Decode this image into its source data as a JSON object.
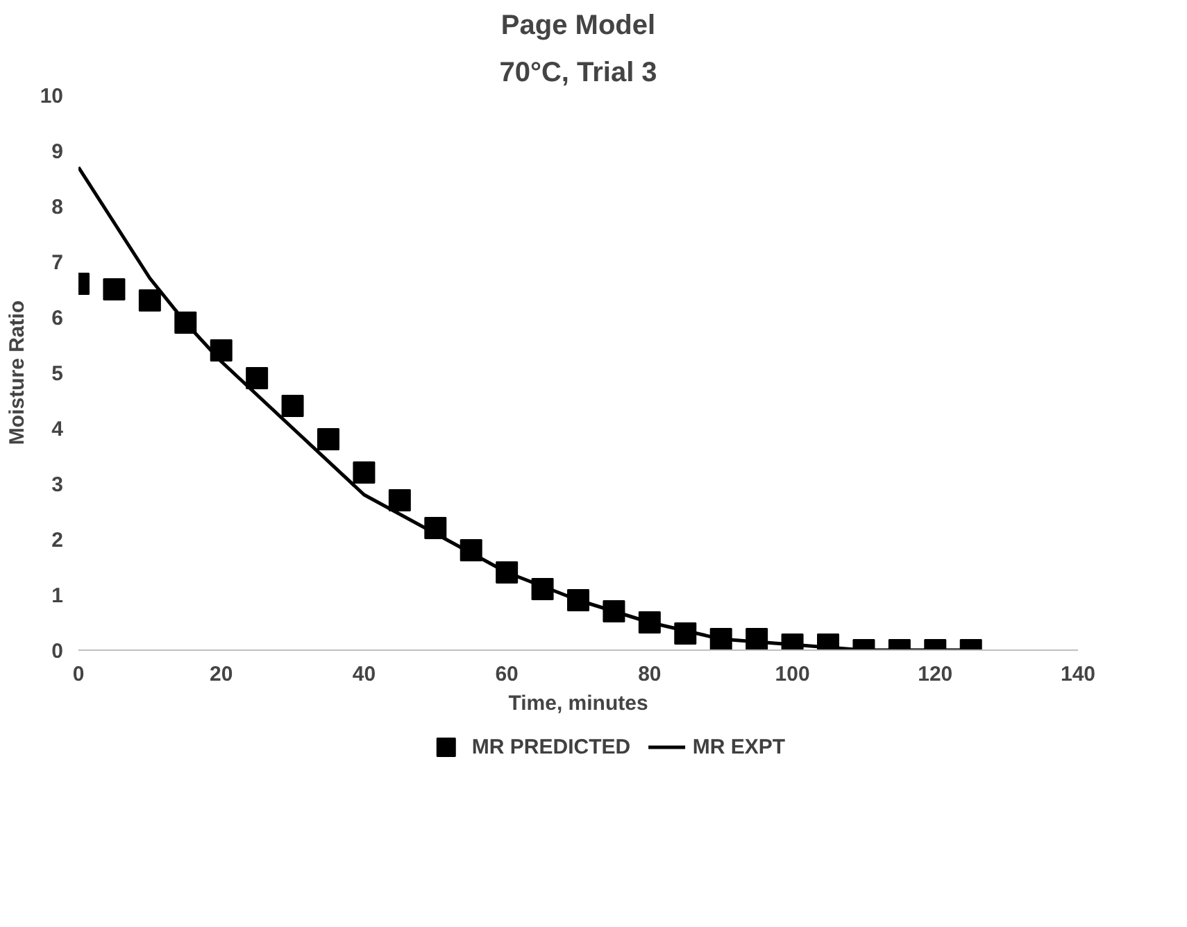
{
  "chart_data": {
    "type": "scatter",
    "title": "Page Model",
    "subtitle": "70°C, Trial 3",
    "xlabel": "Time, minutes",
    "ylabel": "Moisture Ratio",
    "xlim": [
      0,
      140
    ],
    "xticks": [
      0,
      20,
      40,
      60,
      80,
      100,
      120,
      140
    ],
    "ylim": [
      0,
      10
    ],
    "yticks": [
      0,
      1,
      2,
      3,
      4,
      5,
      6,
      7,
      8,
      9,
      10
    ],
    "grid": false,
    "legend": "bottom",
    "series": [
      {
        "name": "MR PREDICTED",
        "marker": "square",
        "color": "#000000",
        "x": [
          0,
          5,
          10,
          15,
          20,
          25,
          30,
          35,
          40,
          45,
          50,
          55,
          60,
          65,
          70,
          75,
          80,
          85,
          90,
          95,
          100,
          105,
          110,
          115,
          120,
          125
        ],
        "values": [
          6.6,
          6.5,
          6.3,
          5.9,
          5.4,
          4.9,
          4.4,
          3.8,
          3.2,
          2.7,
          2.2,
          1.8,
          1.4,
          1.1,
          0.9,
          0.7,
          0.5,
          0.3,
          0.2,
          0.2,
          0.1,
          0.1,
          0.0,
          0.0,
          0.0,
          0.0
        ]
      },
      {
        "name": "MR EXPT",
        "type": "line",
        "line_style": "solid",
        "color": "#000000",
        "x": [
          0,
          5,
          10,
          15,
          20,
          30,
          40,
          50,
          60,
          70,
          80,
          90,
          100,
          110,
          125
        ],
        "values": [
          8.7,
          7.7,
          6.7,
          5.9,
          5.2,
          4.0,
          2.8,
          2.1,
          1.4,
          0.9,
          0.5,
          0.2,
          0.1,
          0.0,
          0.0
        ]
      }
    ]
  }
}
